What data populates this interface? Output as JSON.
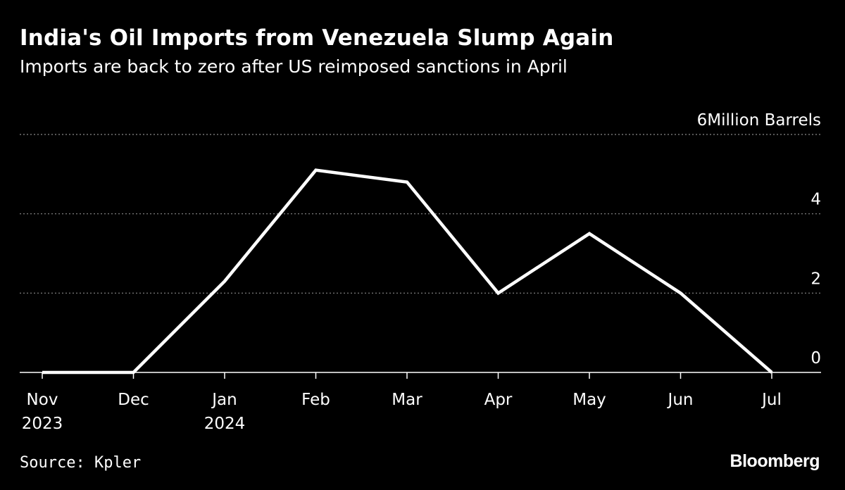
{
  "header": {
    "title": "India's Oil Imports from Venezuela Slump Again",
    "subtitle": "Imports are back to zero after US reimposed sanctions in April"
  },
  "footer": {
    "source": "Source: Kpler",
    "brand": "Bloomberg"
  },
  "colors": {
    "background": "#000000",
    "line": "#ffffff",
    "grid": "#8a8a8a",
    "text": "#ffffff"
  },
  "chart_data": {
    "type": "line",
    "title": "India's Oil Imports from Venezuela Slump Again",
    "subtitle": "Imports are back to zero after US reimposed sanctions in April",
    "xlabel": "",
    "ylabel": "Million Barrels",
    "y_unit_label": "Million Barrels",
    "ylim": [
      0,
      6
    ],
    "yticks": [
      0,
      2,
      4,
      6
    ],
    "ytick_labels": [
      "0",
      "2",
      "4",
      "6"
    ],
    "grid": true,
    "legend": "none",
    "categories": [
      "Nov",
      "Dec",
      "Jan",
      "Feb",
      "Mar",
      "Apr",
      "May",
      "Jun",
      "Jul"
    ],
    "category_years": [
      "2023",
      "",
      "2024",
      "",
      "",
      "",
      "",
      "",
      ""
    ],
    "series": [
      {
        "name": "Imports",
        "values": [
          0,
          0,
          2.3,
          5.1,
          4.8,
          2.0,
          3.5,
          2.0,
          0
        ]
      }
    ]
  }
}
